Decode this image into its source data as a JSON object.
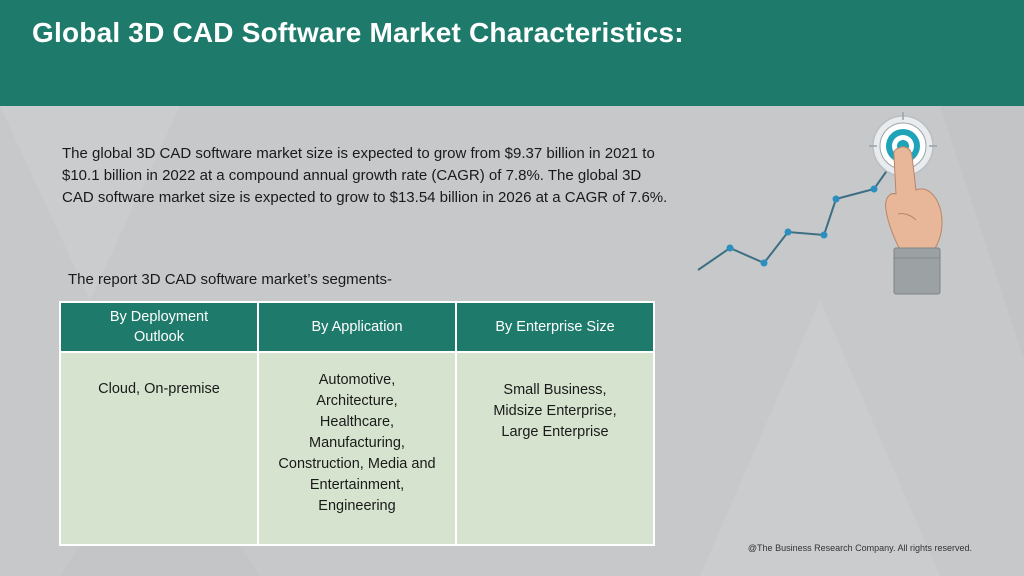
{
  "header": {
    "title": "Global 3D CAD Software Market Characteristics:",
    "background_color": "#1e7b6b"
  },
  "intro": {
    "text": "The global 3D CAD software market size is expected to grow from $9.37 billion in 2021 to $10.1 billion in 2022 at a compound annual growth rate (CAGR) of 7.8%. The global 3D CAD software market size is expected to grow to $13.54 billion in 2026 at a CAGR of 7.6%."
  },
  "segments": {
    "caption": "The report 3D CAD software market’s segments-",
    "columns": [
      {
        "header": "By Deployment Outlook",
        "content": "Cloud, On-premise"
      },
      {
        "header": "By Application",
        "content": "Automotive,\nArchitecture,\nHealthcare,\nManufacturing,\nConstruction, Media and Entertainment,\nEngineering"
      },
      {
        "header": "By Enterprise Size",
        "content": "Small Business,\nMidsize Enterprise,\nLarge Enterprise"
      }
    ],
    "header_color": "#1e7b6b",
    "cell_color": "#d6e4cf"
  },
  "illustration": {
    "icons": [
      "growth-line-chart-icon",
      "target-icon",
      "pointing-hand-icon"
    ]
  },
  "footer": {
    "copyright": "@The Business Research Company. All rights reserved."
  }
}
